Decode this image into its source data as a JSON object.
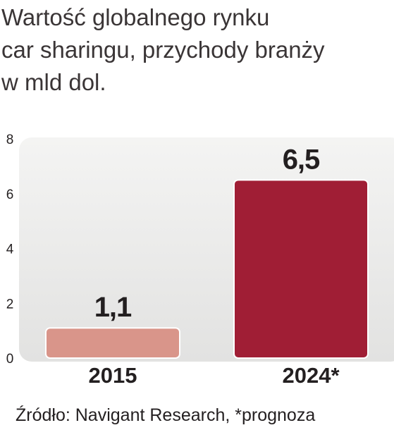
{
  "title_lines": [
    "Wartość globalnego rynku",
    "car sharingu, przychody branży",
    "w mld dol."
  ],
  "source": "Źródło: Navigant Research, *prognoza",
  "chart_data": {
    "type": "bar",
    "categories": [
      "2015",
      "2024*"
    ],
    "values": [
      1.1,
      6.5
    ],
    "value_labels": [
      "1,1",
      "6,5"
    ],
    "colors": [
      "#d9958a",
      "#a01e35"
    ],
    "ylim": [
      0,
      8
    ],
    "yticks": [
      0,
      2,
      4,
      6,
      8
    ],
    "grid": false,
    "legend": "none"
  }
}
